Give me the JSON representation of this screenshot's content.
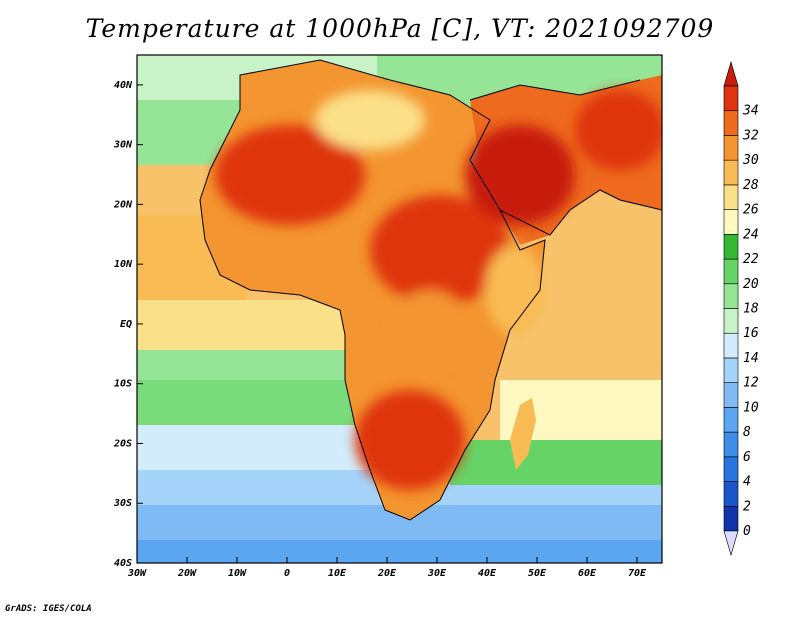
{
  "title": "Temperature at 1000hPa [C], VT: 2021092709",
  "credit": "GrADS: IGES/COLA",
  "map": {
    "projection": "latlon",
    "lon_range": [
      -30,
      75
    ],
    "lat_range": [
      -40,
      45
    ],
    "lon_ticks": [
      "30W",
      "20W",
      "10W",
      "0",
      "10E",
      "20E",
      "30E",
      "40E",
      "50E",
      "60E",
      "70E"
    ],
    "lon_tick_values": [
      -30,
      -20,
      -10,
      0,
      10,
      20,
      30,
      40,
      50,
      60,
      70
    ],
    "lat_ticks": [
      "40S",
      "30S",
      "20S",
      "10S",
      "EQ",
      "10N",
      "20N",
      "30N",
      "40N"
    ],
    "lat_tick_values": [
      -40,
      -30,
      -20,
      -10,
      0,
      10,
      20,
      30,
      40
    ]
  },
  "colorbar": {
    "labels": [
      "0",
      "2",
      "4",
      "6",
      "8",
      "10",
      "12",
      "14",
      "16",
      "18",
      "20",
      "22",
      "24",
      "26",
      "28",
      "30",
      "32",
      "34"
    ],
    "colors": [
      "#0a0a7a",
      "#1133aa",
      "#1a55cc",
      "#2a72dd",
      "#3e8ee8",
      "#5ca6f0",
      "#7fbaf5",
      "#a6d3fa",
      "#d2ecfb",
      "#c8f3c8",
      "#96e596",
      "#66d366",
      "#35b935",
      "#fff8c0",
      "#fbe08a",
      "#f9bc55",
      "#f39530",
      "#ed6a1e",
      "#df3410",
      "#c81e0a"
    ]
  }
}
